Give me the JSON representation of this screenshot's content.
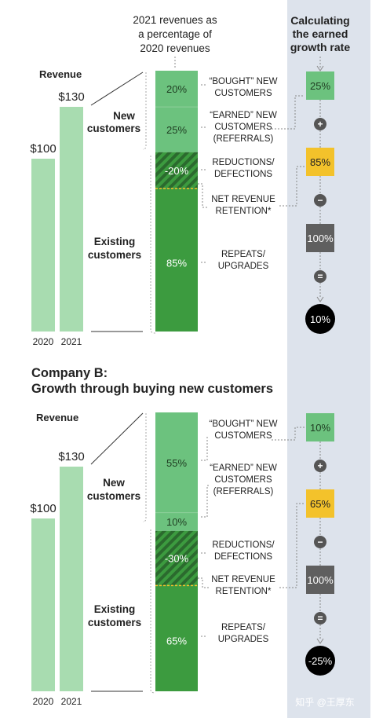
{
  "header": {
    "pct_caption": [
      "2021 revenues as",
      "a percentage of",
      "2020 revenues"
    ],
    "calc_title": [
      "Calculating",
      "the earned",
      "growth rate"
    ]
  },
  "labels": {
    "revenue": "Revenue",
    "new_customers": [
      "New",
      "customers"
    ],
    "existing_customers": [
      "Existing",
      "customers"
    ],
    "bought": [
      "“BOUGHT” NEW",
      "CUSTOMERS"
    ],
    "earned": [
      "“EARNED” NEW",
      "CUSTOMERS",
      "(REFERRALS)"
    ],
    "reductions": [
      "REDUCTIONS/",
      "DEFECTIONS"
    ],
    "nrr": [
      "NET REVENUE",
      "RETENTION*"
    ],
    "repeats": [
      "REPEATS/",
      "UPGRADES"
    ],
    "plus": "+",
    "minus": "−",
    "equals": "="
  },
  "colors": {
    "light_green": "#a8dcb0",
    "mid_green": "#6cc27e",
    "dark_green": "#3c9b3f",
    "hatch_dark": "#2b6a2e",
    "yellow": "#f3c22b",
    "gray_box": "#5f5f5f",
    "calc_panel": "#dde3ec"
  },
  "chart_data": [
    {
      "type": "bar",
      "title": "",
      "ylabel": "Revenue",
      "categories": [
        "2020",
        "2021"
      ],
      "values": [
        100,
        130
      ],
      "value_labels": [
        "$100",
        "$130"
      ],
      "stack_percent": {
        "bought": 20,
        "earned": 25,
        "reductions": -20,
        "repeats": 85
      },
      "stack_labels": [
        "20%",
        "25%",
        "-20%",
        "85%"
      ],
      "calculation": {
        "bought": 25,
        "nrr": 85,
        "base": 100,
        "result": 10,
        "labels": [
          "25%",
          "85%",
          "100%",
          "10%"
        ]
      }
    },
    {
      "type": "bar",
      "title": "Company B:",
      "subtitle": "Growth through buying new customers",
      "ylabel": "Revenue",
      "categories": [
        "2020",
        "2021"
      ],
      "values": [
        100,
        130
      ],
      "value_labels": [
        "$100",
        "$130"
      ],
      "stack_percent": {
        "bought": 55,
        "earned": 10,
        "reductions": -30,
        "repeats": 65
      },
      "stack_labels": [
        "55%",
        "10%",
        "-30%",
        "65%"
      ],
      "calculation": {
        "bought": 10,
        "nrr": 65,
        "base": 100,
        "result": -25,
        "labels": [
          "10%",
          "65%",
          "100%",
          "-25%"
        ]
      }
    }
  ],
  "watermark": "知乎 @王厚东"
}
